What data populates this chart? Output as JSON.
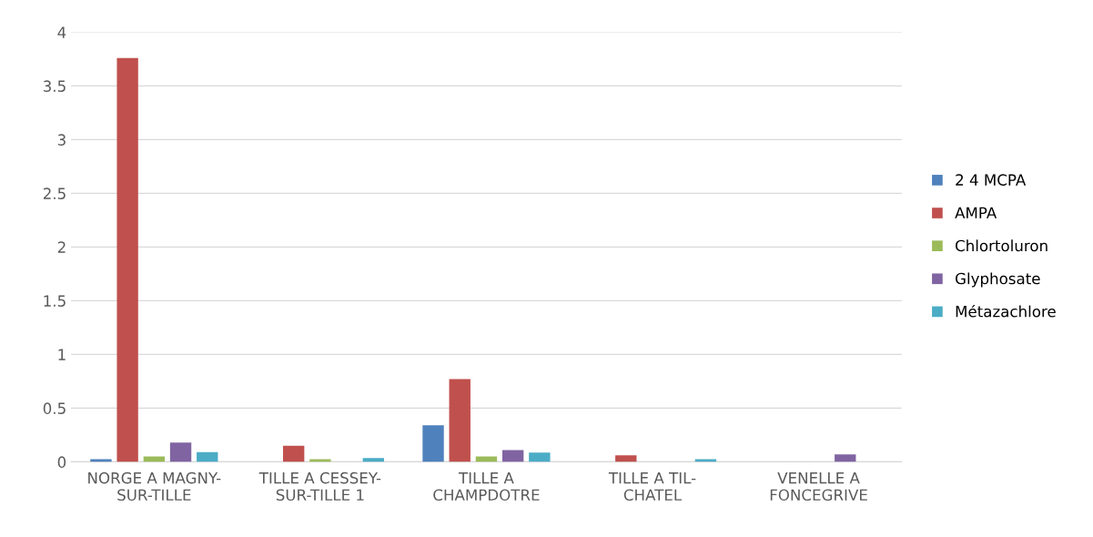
{
  "chart_data": {
    "type": "bar",
    "categories": [
      "NORGE A MAGNY-SUR-TILLE",
      "TILLE A CESSEY-SUR-TILLE 1",
      "TILLE A CHAMPDOTRE",
      "TILLE A TIL-CHATEL",
      "VENELLE A FONCEGRIVE"
    ],
    "series": [
      {
        "name": "2 4 MCPA",
        "color": "#4f81bd",
        "values": [
          0.025,
          null,
          0.34,
          null,
          null
        ]
      },
      {
        "name": "AMPA",
        "color": "#c0504d",
        "values": [
          3.76,
          0.15,
          0.77,
          0.06,
          null
        ]
      },
      {
        "name": "Chlortoluron",
        "color": "#9bbb59",
        "values": [
          0.05,
          0.025,
          0.05,
          null,
          null
        ]
      },
      {
        "name": "Glyphosate",
        "color": "#8064a2",
        "values": [
          0.18,
          null,
          0.11,
          null,
          0.07
        ]
      },
      {
        "name": "Métazachlore",
        "color": "#4bacc6",
        "values": [
          0.09,
          0.035,
          0.085,
          0.025,
          null
        ]
      }
    ],
    "ylim": [
      0,
      4
    ],
    "yticks": [
      0,
      {
        "value": 0.5,
        "label": "0.5"
      },
      1,
      {
        "value": 1.5,
        "label": "1.5"
      },
      2,
      {
        "value": 2.5,
        "label": "2.5"
      },
      3,
      {
        "value": 3.5,
        "label": "3.5"
      },
      4
    ],
    "grid": "y",
    "legend": "right"
  }
}
